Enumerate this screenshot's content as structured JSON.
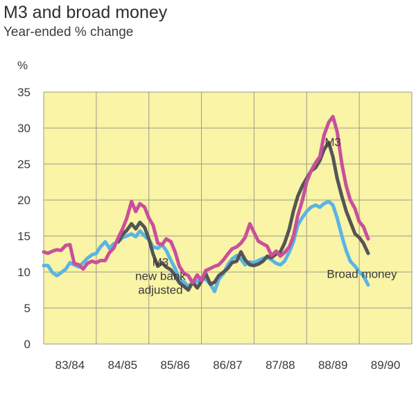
{
  "chart_data": {
    "type": "line",
    "title": "M3 and broad money",
    "subtitle": "Year-ended % change",
    "ylabel": "%",
    "ylim": [
      0,
      35
    ],
    "yticks": [
      0,
      5,
      10,
      15,
      20,
      25,
      30,
      35
    ],
    "xlim": [
      1983.5,
      1990.5
    ],
    "categories": [
      "83/84",
      "84/85",
      "85/86",
      "86/87",
      "87/88",
      "88/89",
      "89/90"
    ],
    "grid": true,
    "background": "#f9f4a6",
    "series": [
      {
        "name": "M3",
        "color": "#c9509a",
        "label_pos": [
          1989.0,
          27.5
        ],
        "points": [
          [
            1983.5,
            12.8
          ],
          [
            1983.58,
            12.6
          ],
          [
            1983.67,
            12.9
          ],
          [
            1983.75,
            13.1
          ],
          [
            1983.83,
            13.0
          ],
          [
            1983.92,
            13.7
          ],
          [
            1984.0,
            13.8
          ],
          [
            1984.08,
            11.2
          ],
          [
            1984.17,
            11.0
          ],
          [
            1984.25,
            10.4
          ],
          [
            1984.33,
            11.2
          ],
          [
            1984.42,
            11.5
          ],
          [
            1984.5,
            11.3
          ],
          [
            1984.58,
            11.6
          ],
          [
            1984.67,
            11.6
          ],
          [
            1984.75,
            12.7
          ],
          [
            1984.83,
            13.3
          ],
          [
            1984.92,
            14.8
          ],
          [
            1985.0,
            16.0
          ],
          [
            1985.08,
            17.5
          ],
          [
            1985.17,
            19.8
          ],
          [
            1985.25,
            18.4
          ],
          [
            1985.33,
            19.5
          ],
          [
            1985.42,
            19.0
          ],
          [
            1985.5,
            17.5
          ],
          [
            1985.58,
            16.5
          ],
          [
            1985.67,
            14.0
          ],
          [
            1985.75,
            13.8
          ],
          [
            1985.83,
            14.6
          ],
          [
            1985.92,
            14.2
          ],
          [
            1986.0,
            12.8
          ],
          [
            1986.08,
            10.8
          ],
          [
            1986.17,
            9.8
          ],
          [
            1986.25,
            9.5
          ],
          [
            1986.33,
            8.5
          ],
          [
            1986.42,
            9.6
          ],
          [
            1986.5,
            8.8
          ],
          [
            1986.58,
            10.2
          ],
          [
            1986.67,
            10.5
          ],
          [
            1986.75,
            10.8
          ],
          [
            1986.83,
            11.0
          ],
          [
            1986.92,
            11.7
          ],
          [
            1987.0,
            12.5
          ],
          [
            1987.08,
            13.2
          ],
          [
            1987.17,
            13.5
          ],
          [
            1987.25,
            14.0
          ],
          [
            1987.33,
            14.8
          ],
          [
            1987.42,
            16.7
          ],
          [
            1987.5,
            15.5
          ],
          [
            1987.58,
            14.3
          ],
          [
            1987.67,
            13.9
          ],
          [
            1987.75,
            13.6
          ],
          [
            1987.83,
            12.3
          ],
          [
            1987.92,
            12.9
          ],
          [
            1988.0,
            12.2
          ],
          [
            1988.08,
            12.7
          ],
          [
            1988.17,
            13.5
          ],
          [
            1988.25,
            15.0
          ],
          [
            1988.33,
            17.8
          ],
          [
            1988.42,
            20.0
          ],
          [
            1988.5,
            22.5
          ],
          [
            1988.58,
            24.0
          ],
          [
            1988.67,
            25.2
          ],
          [
            1988.75,
            26.0
          ],
          [
            1988.83,
            29.0
          ],
          [
            1988.92,
            30.8
          ],
          [
            1989.0,
            31.6
          ],
          [
            1989.08,
            29.5
          ],
          [
            1989.17,
            25.0
          ],
          [
            1989.25,
            22.0
          ],
          [
            1989.33,
            20.0
          ],
          [
            1989.42,
            18.8
          ],
          [
            1989.5,
            17.0
          ],
          [
            1989.58,
            16.3
          ],
          [
            1989.67,
            14.6
          ]
        ]
      },
      {
        "name": "M3 new bank adjusted",
        "color": "#555555",
        "label_pos": [
          1985.72,
          10.8
        ],
        "points": [
          [
            1984.92,
            14.2
          ],
          [
            1985.0,
            15.2
          ],
          [
            1985.08,
            15.8
          ],
          [
            1985.17,
            16.7
          ],
          [
            1985.25,
            16.0
          ],
          [
            1985.33,
            16.9
          ],
          [
            1985.42,
            16.2
          ],
          [
            1985.5,
            14.6
          ],
          [
            1985.58,
            12.5
          ],
          [
            1985.67,
            10.8
          ],
          [
            1985.75,
            11.3
          ],
          [
            1985.83,
            10.7
          ],
          [
            1985.92,
            10.3
          ],
          [
            1986.0,
            9.5
          ],
          [
            1986.08,
            8.5
          ],
          [
            1986.17,
            8.0
          ],
          [
            1986.25,
            7.5
          ],
          [
            1986.33,
            8.6
          ],
          [
            1986.42,
            7.8
          ],
          [
            1986.5,
            8.7
          ],
          [
            1986.58,
            9.8
          ],
          [
            1986.67,
            8.3
          ],
          [
            1986.75,
            8.6
          ],
          [
            1986.83,
            9.5
          ],
          [
            1986.92,
            10.0
          ],
          [
            1987.0,
            10.5
          ],
          [
            1987.08,
            11.3
          ],
          [
            1987.17,
            11.5
          ],
          [
            1987.25,
            12.8
          ],
          [
            1987.33,
            11.7
          ],
          [
            1987.42,
            11.0
          ],
          [
            1987.5,
            10.9
          ],
          [
            1987.58,
            11.1
          ],
          [
            1987.67,
            11.5
          ],
          [
            1987.75,
            12.2
          ],
          [
            1987.83,
            12.0
          ],
          [
            1987.92,
            12.5
          ],
          [
            1988.0,
            12.8
          ],
          [
            1988.08,
            14.0
          ],
          [
            1988.17,
            16.0
          ],
          [
            1988.25,
            18.5
          ],
          [
            1988.33,
            20.5
          ],
          [
            1988.42,
            22.0
          ],
          [
            1988.5,
            23.0
          ],
          [
            1988.58,
            24.0
          ],
          [
            1988.67,
            24.5
          ],
          [
            1988.75,
            25.5
          ],
          [
            1988.83,
            27.0
          ],
          [
            1988.92,
            28.0
          ],
          [
            1989.0,
            26.0
          ],
          [
            1989.08,
            23.0
          ],
          [
            1989.17,
            20.5
          ],
          [
            1989.25,
            18.5
          ],
          [
            1989.33,
            17.0
          ],
          [
            1989.42,
            15.3
          ],
          [
            1989.5,
            14.8
          ],
          [
            1989.58,
            14.0
          ],
          [
            1989.67,
            12.6
          ]
        ]
      },
      {
        "name": "Broad money",
        "color": "#5ab4e4",
        "label_pos": [
          1989.55,
          9.2
        ],
        "points": [
          [
            1983.5,
            10.9
          ],
          [
            1983.58,
            10.9
          ],
          [
            1983.67,
            9.9
          ],
          [
            1983.75,
            9.5
          ],
          [
            1983.83,
            9.9
          ],
          [
            1983.92,
            10.4
          ],
          [
            1984.0,
            11.3
          ],
          [
            1984.08,
            11.0
          ],
          [
            1984.17,
            10.7
          ],
          [
            1984.25,
            11.3
          ],
          [
            1984.33,
            11.9
          ],
          [
            1984.42,
            12.4
          ],
          [
            1984.5,
            12.6
          ],
          [
            1984.58,
            13.5
          ],
          [
            1984.67,
            14.2
          ],
          [
            1984.75,
            13.3
          ],
          [
            1984.83,
            13.9
          ],
          [
            1984.92,
            14.2
          ],
          [
            1985.0,
            14.8
          ],
          [
            1985.08,
            15.0
          ],
          [
            1985.17,
            15.3
          ],
          [
            1985.25,
            14.9
          ],
          [
            1985.33,
            15.7
          ],
          [
            1985.42,
            15.0
          ],
          [
            1985.5,
            14.5
          ],
          [
            1985.58,
            13.5
          ],
          [
            1985.67,
            13.3
          ],
          [
            1985.75,
            13.8
          ],
          [
            1985.83,
            13.0
          ],
          [
            1985.92,
            11.6
          ],
          [
            1986.0,
            10.5
          ],
          [
            1986.08,
            9.0
          ],
          [
            1986.17,
            8.6
          ],
          [
            1986.25,
            8.0
          ],
          [
            1986.33,
            8.5
          ],
          [
            1986.42,
            8.7
          ],
          [
            1986.5,
            9.2
          ],
          [
            1986.58,
            9.0
          ],
          [
            1986.67,
            8.3
          ],
          [
            1986.75,
            7.3
          ],
          [
            1986.83,
            9.0
          ],
          [
            1986.92,
            9.8
          ],
          [
            1987.0,
            11.0
          ],
          [
            1987.08,
            11.8
          ],
          [
            1987.17,
            12.3
          ],
          [
            1987.25,
            11.8
          ],
          [
            1987.33,
            11.0
          ],
          [
            1987.42,
            11.4
          ],
          [
            1987.5,
            11.3
          ],
          [
            1987.58,
            11.6
          ],
          [
            1987.67,
            11.9
          ],
          [
            1987.75,
            12.0
          ],
          [
            1987.83,
            11.7
          ],
          [
            1987.92,
            11.2
          ],
          [
            1988.0,
            11.0
          ],
          [
            1988.08,
            11.5
          ],
          [
            1988.17,
            12.8
          ],
          [
            1988.25,
            14.2
          ],
          [
            1988.33,
            16.5
          ],
          [
            1988.42,
            17.6
          ],
          [
            1988.5,
            18.4
          ],
          [
            1988.58,
            19.0
          ],
          [
            1988.67,
            19.3
          ],
          [
            1988.75,
            19.0
          ],
          [
            1988.83,
            19.5
          ],
          [
            1988.92,
            19.8
          ],
          [
            1989.0,
            19.3
          ],
          [
            1989.08,
            17.5
          ],
          [
            1989.17,
            15.0
          ],
          [
            1989.25,
            13.0
          ],
          [
            1989.33,
            11.5
          ],
          [
            1989.42,
            10.8
          ],
          [
            1989.5,
            10.0
          ],
          [
            1989.58,
            9.5
          ],
          [
            1989.67,
            8.2
          ]
        ]
      }
    ]
  }
}
